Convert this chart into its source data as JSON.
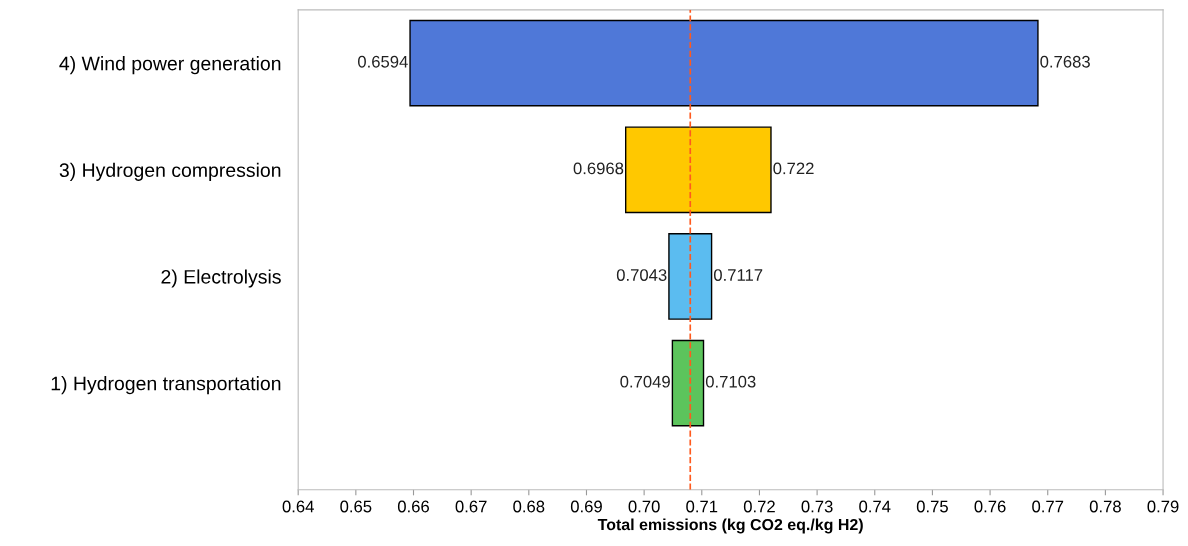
{
  "chart_data": {
    "type": "bar",
    "orientation": "horizontal",
    "xlabel": "Total emissions (kg CO2 eq./kg H2)",
    "categories": [
      "4) Wind power generation",
      "3) Hydrogen compression",
      "2) Electrolysis",
      "1) Hydrogen transportation"
    ],
    "base": [
      0.6594,
      0.6968,
      0.7043,
      0.7049
    ],
    "values": [
      0.1089,
      0.0252,
      0.0074,
      0.0054
    ],
    "colors": [
      "#4f78d8",
      "#ffc800",
      "#5bbcf0",
      "#5cc45c"
    ],
    "xlim": [
      0.64,
      0.79
    ],
    "xticks": [
      0.64,
      0.65,
      0.66,
      0.67,
      0.68,
      0.69,
      {
        "value": 0.7,
        "label": "0.70"
      },
      0.71,
      0.72,
      0.73,
      0.74,
      0.75,
      0.76,
      0.77,
      0.78,
      0.79
    ],
    "ref_lines": [
      {
        "axis": "x",
        "value": 0.708,
        "color": "#ff5a1e",
        "line_style": "dashed"
      }
    ],
    "annotations": [
      {
        "text": "0.6594",
        "x": 0.6594,
        "y": "4) Wind power generation"
      },
      {
        "text": "0.7683",
        "x": 0.7683,
        "y": "4) Wind power generation"
      },
      {
        "text": "0.6968",
        "x": 0.6968,
        "y": "3) Hydrogen compression"
      },
      {
        "text": "0.722",
        "x": 0.722,
        "y": "3) Hydrogen compression"
      },
      {
        "text": "0.7043",
        "x": 0.7043,
        "y": "2) Electrolysis"
      },
      {
        "text": "0.7117",
        "x": 0.7117,
        "y": "2) Electrolysis"
      },
      {
        "text": "0.7049",
        "x": 0.7049,
        "y": "1) Hydrogen transportation"
      },
      {
        "text": "0.7103",
        "x": 0.7103,
        "y": "1) Hydrogen transportation"
      }
    ],
    "grid": false,
    "legend": false
  }
}
